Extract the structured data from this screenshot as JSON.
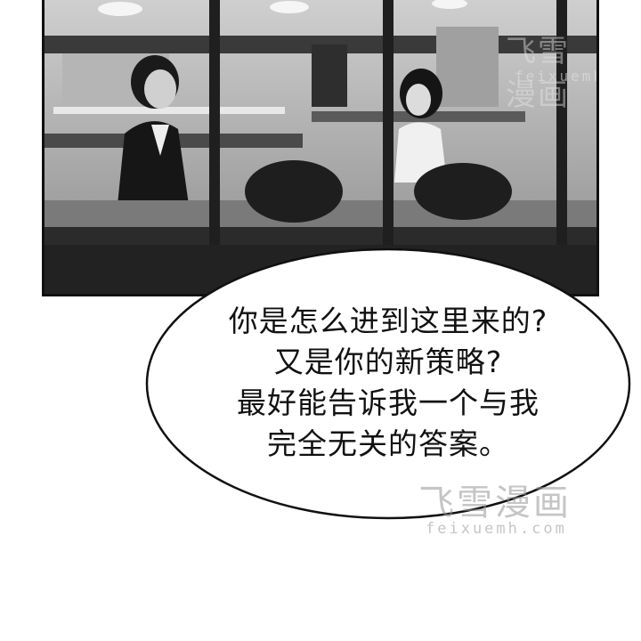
{
  "speech_bubble": {
    "lines": [
      "你是怎么进到这里来的?",
      "又是你的新策略?",
      "最好能告诉我一个与我",
      "完全无关的答案。"
    ]
  },
  "watermarks": {
    "top": {
      "title": "飞雪漫画",
      "url": "feixuemh.com"
    },
    "bottom": {
      "title": "飞雪漫画",
      "url": "feixuemh.com"
    }
  }
}
